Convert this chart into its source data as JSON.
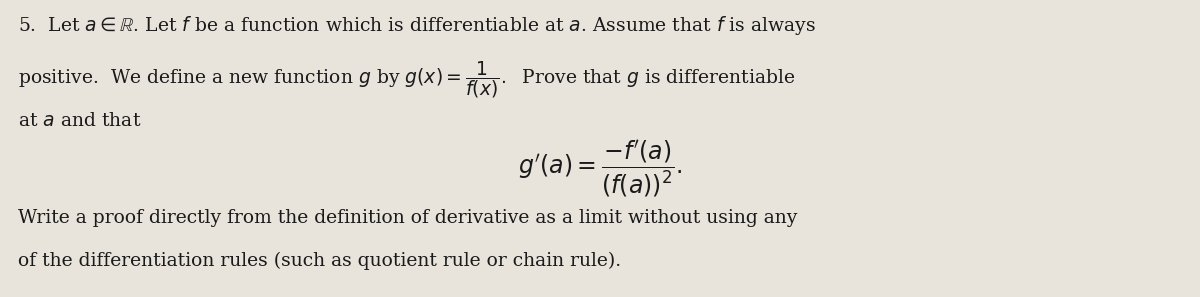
{
  "figsize": [
    12.0,
    2.97
  ],
  "dpi": 100,
  "background_color": "#e8e4dc",
  "text_color": "#1a1a1a",
  "font_size_main": 13.5,
  "font_size_formula": 17,
  "line1": "5.  Let $a \\in \\mathbb{R}$. Let $f$ be a function which is differentiable at $a$. Assume that $f$ is always",
  "line2": "positive.  We define a new function $g$ by $g(x) = \\dfrac{1}{f(x)}.$  Prove that $g$ is differentiable",
  "line3": "at $a$ and that",
  "formula": "$g'(a) = \\dfrac{-f'(a)}{(f(a))^2}.$",
  "line4": "Write a proof directly from the definition of derivative as a limit without using any",
  "line5": "of the differentiation rules (such as quotient rule or chain rule)."
}
